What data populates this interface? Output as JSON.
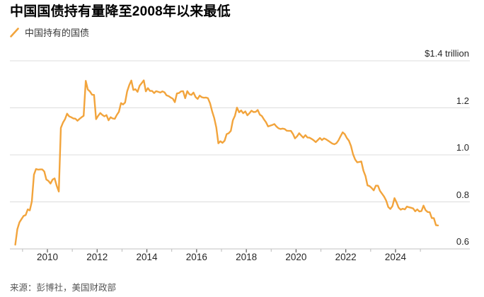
{
  "title": "中国国债持有量降至2008年以来最低",
  "legend": {
    "label": "中国持有的国债"
  },
  "source": "来源：彭博社，美国财政部",
  "colors": {
    "line": "#F2A43C",
    "gridline": "#dcdcdc",
    "axis_line": "#c2c2c2",
    "major_tick": "#555555",
    "minor_tick": "#bbbbbb"
  },
  "chart_data": {
    "type": "line",
    "title": "中国国债持有量降至2008年以来最低",
    "series": [
      {
        "name": "中国持有的国债",
        "unit": "USD billions"
      }
    ],
    "frequency": "monthly",
    "start": {
      "year": 2008,
      "month": 9
    },
    "end": {
      "year": 2025,
      "month": 9
    },
    "values_billions": [
      618,
      684,
      713,
      727,
      740,
      744,
      768,
      764,
      802,
      916,
      940,
      937,
      938,
      938,
      929,
      895,
      889,
      878,
      895,
      900,
      868,
      844,
      1115,
      1137,
      1152,
      1175,
      1164,
      1160,
      1155,
      1154,
      1145,
      1153,
      1160,
      1166,
      1315,
      1278,
      1270,
      1256,
      1255,
      1152,
      1166,
      1178,
      1170,
      1164,
      1169,
      1147,
      1160,
      1155,
      1153,
      1170,
      1183,
      1220,
      1214,
      1223,
      1270,
      1297,
      1316,
      1276,
      1279,
      1268,
      1294,
      1305,
      1317,
      1270,
      1284,
      1272,
      1272,
      1263,
      1271,
      1268,
      1265,
      1270,
      1266,
      1253,
      1250,
      1244,
      1239,
      1224,
      1261,
      1263,
      1270,
      1271,
      1241,
      1271,
      1258,
      1255,
      1265,
      1246,
      1238,
      1252,
      1245,
      1243,
      1244,
      1241,
      1219,
      1185,
      1157,
      1116,
      1049,
      1058,
      1051,
      1060,
      1088,
      1092,
      1102,
      1147,
      1166,
      1201,
      1181,
      1189,
      1177,
      1185,
      1168,
      1177,
      1188,
      1182,
      1183,
      1191,
      1171,
      1165,
      1151,
      1139,
      1121,
      1124,
      1127,
      1131,
      1121,
      1113,
      1110,
      1112,
      1110,
      1103,
      1102,
      1102,
      1089,
      1070,
      1079,
      1092,
      1082,
      1073,
      1084,
      1074,
      1073,
      1068,
      1062,
      1054,
      1063,
      1072,
      1063,
      1070,
      1066,
      1060,
      1054,
      1048,
      1045,
      1050,
      1062,
      1080,
      1096,
      1088,
      1072,
      1060,
      1038,
      1003,
      980,
      968,
      970,
      972,
      933,
      910,
      870,
      867,
      859,
      849,
      869,
      869,
      847,
      835,
      822,
      805,
      778,
      770,
      782,
      816,
      798,
      775,
      767,
      771,
      768,
      780,
      777,
      775,
      772,
      760,
      768,
      759,
      761,
      784,
      765,
      757,
      756,
      731,
      731,
      701,
      700
    ],
    "ylabel": "",
    "xlabel": "",
    "ylim": [
      0.6,
      1.45
    ],
    "xlim_years": [
      2008.5,
      2026.1
    ],
    "grid": true,
    "legend_position": "top-left",
    "y_ticks": [
      {
        "value": 1.4,
        "label": "$1.4 trillion"
      },
      {
        "value": 1.2,
        "label": "1.2"
      },
      {
        "value": 1.0,
        "label": "1.0"
      },
      {
        "value": 0.8,
        "label": "0.8"
      },
      {
        "value": 0.6,
        "label": "0.6"
      }
    ],
    "x_ticks_labeled": [
      2010,
      2012,
      2014,
      2016,
      2018,
      2020,
      2022,
      2024
    ],
    "x_ticks_minor": [
      2009,
      2011,
      2013,
      2015,
      2017,
      2019,
      2021,
      2023,
      2025
    ]
  }
}
